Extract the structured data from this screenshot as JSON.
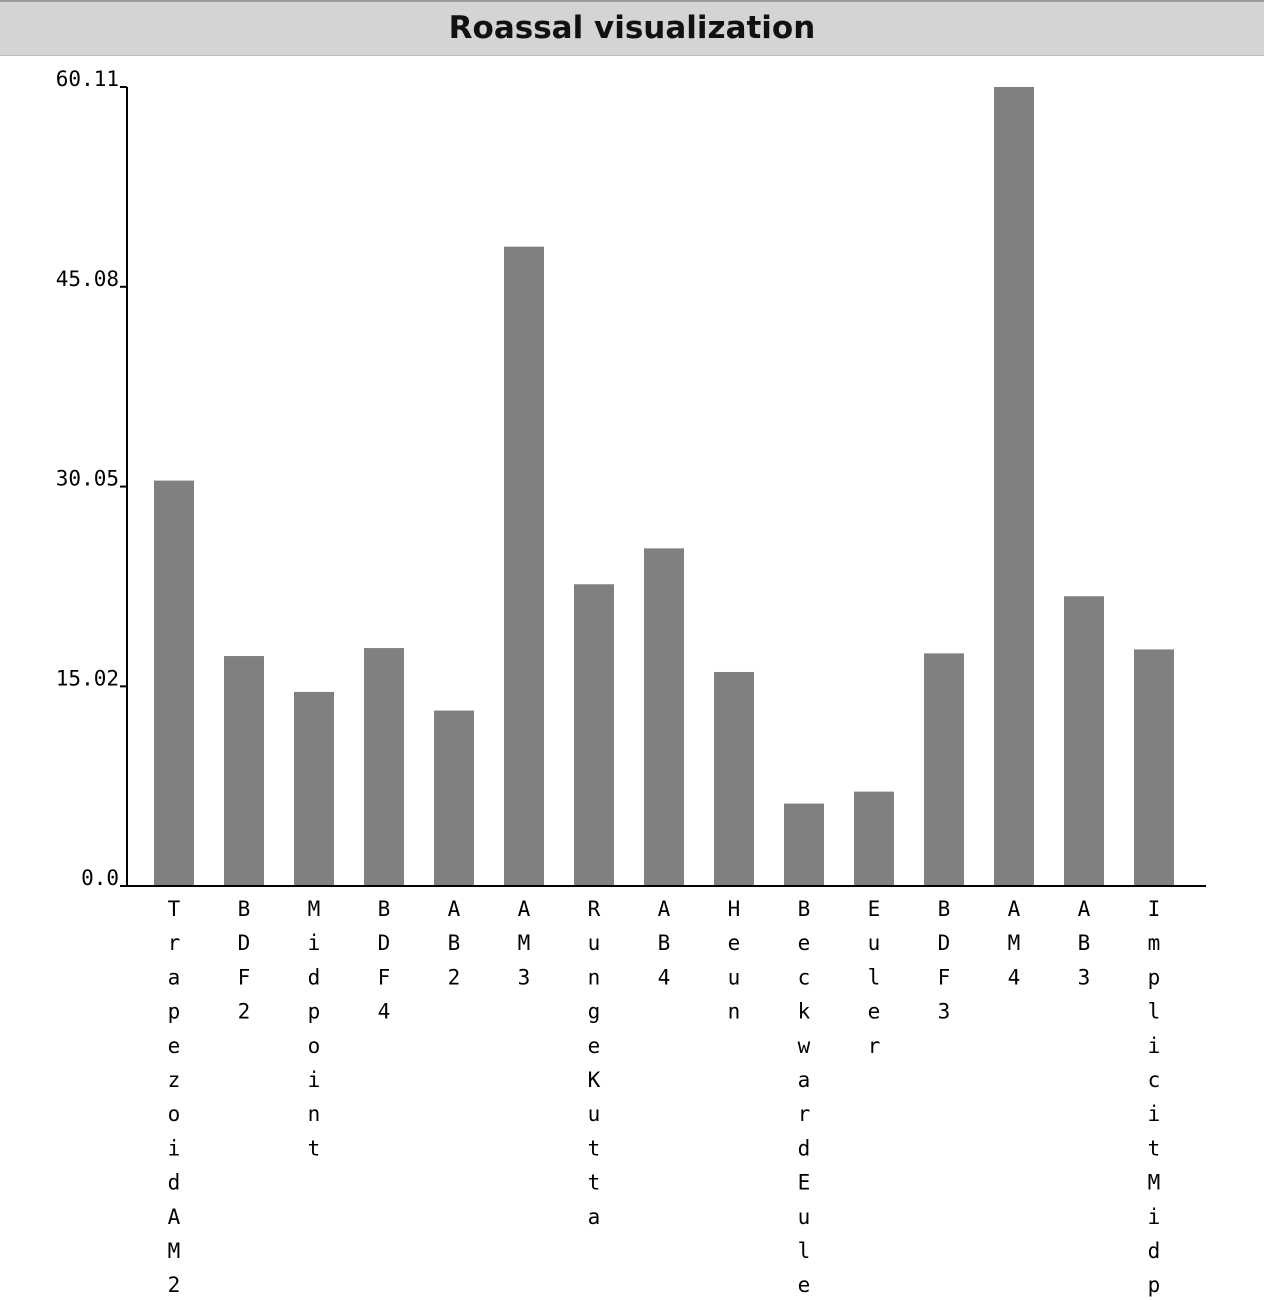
{
  "window": {
    "title": "Roassal visualization"
  },
  "colors": {
    "bar": "#808080",
    "axis": "#000000",
    "titlebar": "#d4d4d4"
  },
  "chart_data": {
    "type": "bar",
    "title": "",
    "xlabel": "",
    "ylabel": "",
    "ylim": [
      0,
      60.11
    ],
    "yticks": [
      "0.0",
      "15.02",
      "30.05",
      "45.08",
      "60.11"
    ],
    "grid": false,
    "legend": "none",
    "categories": [
      "TrapezoidAM2",
      "BDF2",
      "Midpoint",
      "BDF4",
      "AB2",
      "AM3",
      "RungeKutta",
      "AB4",
      "Heun",
      "BeckwardEule",
      "Euler",
      "BDF3",
      "AM4",
      "AB3",
      "ImplicitMidp"
    ],
    "values": [
      30.5,
      17.3,
      14.6,
      17.9,
      13.2,
      48.1,
      22.7,
      25.4,
      16.1,
      6.2,
      7.1,
      17.5,
      60.11,
      21.8,
      17.8
    ]
  }
}
